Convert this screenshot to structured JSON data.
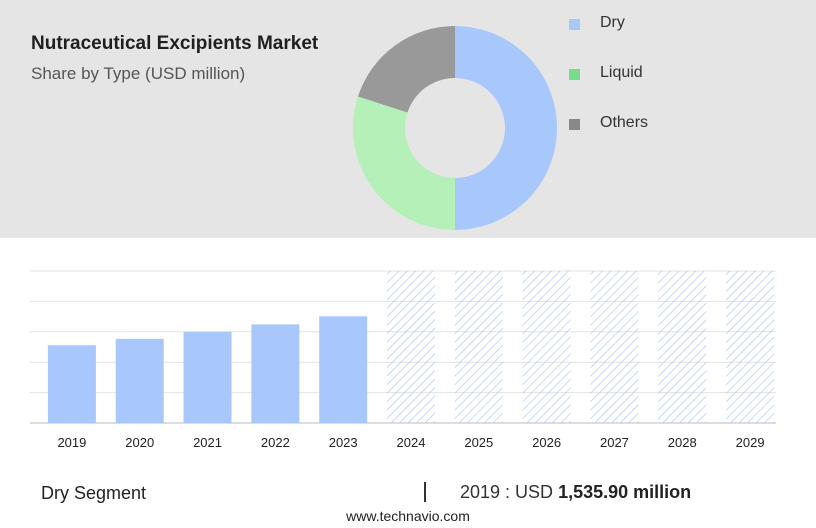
{
  "header": {
    "title": "Nutraceutical Excipients Market",
    "subtitle": "Share by Type (USD million)"
  },
  "chart_data": [
    {
      "type": "pie",
      "variant": "donut",
      "slices": [
        {
          "label": "Dry",
          "value": 50,
          "color": "#a8c8fb"
        },
        {
          "label": "Liquid",
          "value": 30,
          "color": "#b5f0b8"
        },
        {
          "label": "Others",
          "value": 20,
          "color": "#999999"
        }
      ],
      "legend": {
        "position": "right",
        "items": [
          {
            "label": "Dry",
            "color": "#a8c8fb"
          },
          {
            "label": "Liquid",
            "color": "#77dd88"
          },
          {
            "label": "Others",
            "color": "#888888"
          }
        ]
      }
    },
    {
      "type": "bar",
      "categories": [
        "2019",
        "2020",
        "2021",
        "2022",
        "2023",
        "2024",
        "2025",
        "2026",
        "2027",
        "2028",
        "2029"
      ],
      "values": [
        1535.9,
        1661,
        1798,
        1946,
        2106,
        null,
        null,
        null,
        null,
        null,
        null
      ],
      "forecast_categories": [
        "2024",
        "2025",
        "2026",
        "2027",
        "2028",
        "2029"
      ],
      "ylim": [
        0,
        3000
      ],
      "grid": true,
      "bar_color": "#a8c8fb",
      "forecast_pattern_color": "#aac4f0"
    }
  ],
  "footer": {
    "segment_label": "Dry Segment",
    "divider": "|",
    "year_prefix": "2019 : USD",
    "value": "1,535.90 million",
    "source": "www.technavio.com"
  }
}
